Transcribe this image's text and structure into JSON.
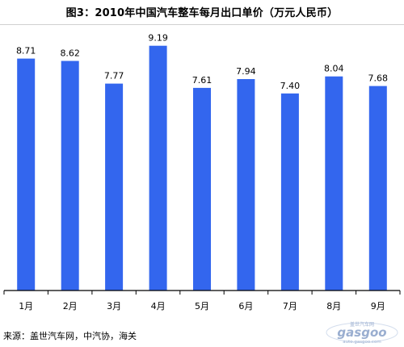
{
  "colors": {
    "bar": "#3366ee",
    "axis": "#000000",
    "watermark": "#9aaed0",
    "watermark_accent": "#e07020"
  },
  "chart_data": {
    "type": "bar",
    "title": "图3：2010年中国汽车整车每月出口单价（万元人民币）",
    "xlabel": "",
    "ylabel": "",
    "categories": [
      "1月",
      "2月",
      "3月",
      "4月",
      "5月",
      "6月",
      "7月",
      "8月",
      "9月"
    ],
    "values": [
      8.71,
      8.62,
      7.77,
      9.19,
      7.61,
      7.94,
      7.4,
      8.04,
      7.68
    ],
    "value_labels": [
      "8.71",
      "8.62",
      "7.77",
      "9.19",
      "7.61",
      "7.94",
      "7.40",
      "8.04",
      "7.68"
    ],
    "ylim": [
      0,
      10
    ],
    "grid": false,
    "legend": "none"
  },
  "source": "来源：盖世汽车网，中汽协，海关",
  "watermark": {
    "brand": "gasgoo",
    "url": "auto.gasgoo.com",
    "cn": "盖世汽车网"
  }
}
